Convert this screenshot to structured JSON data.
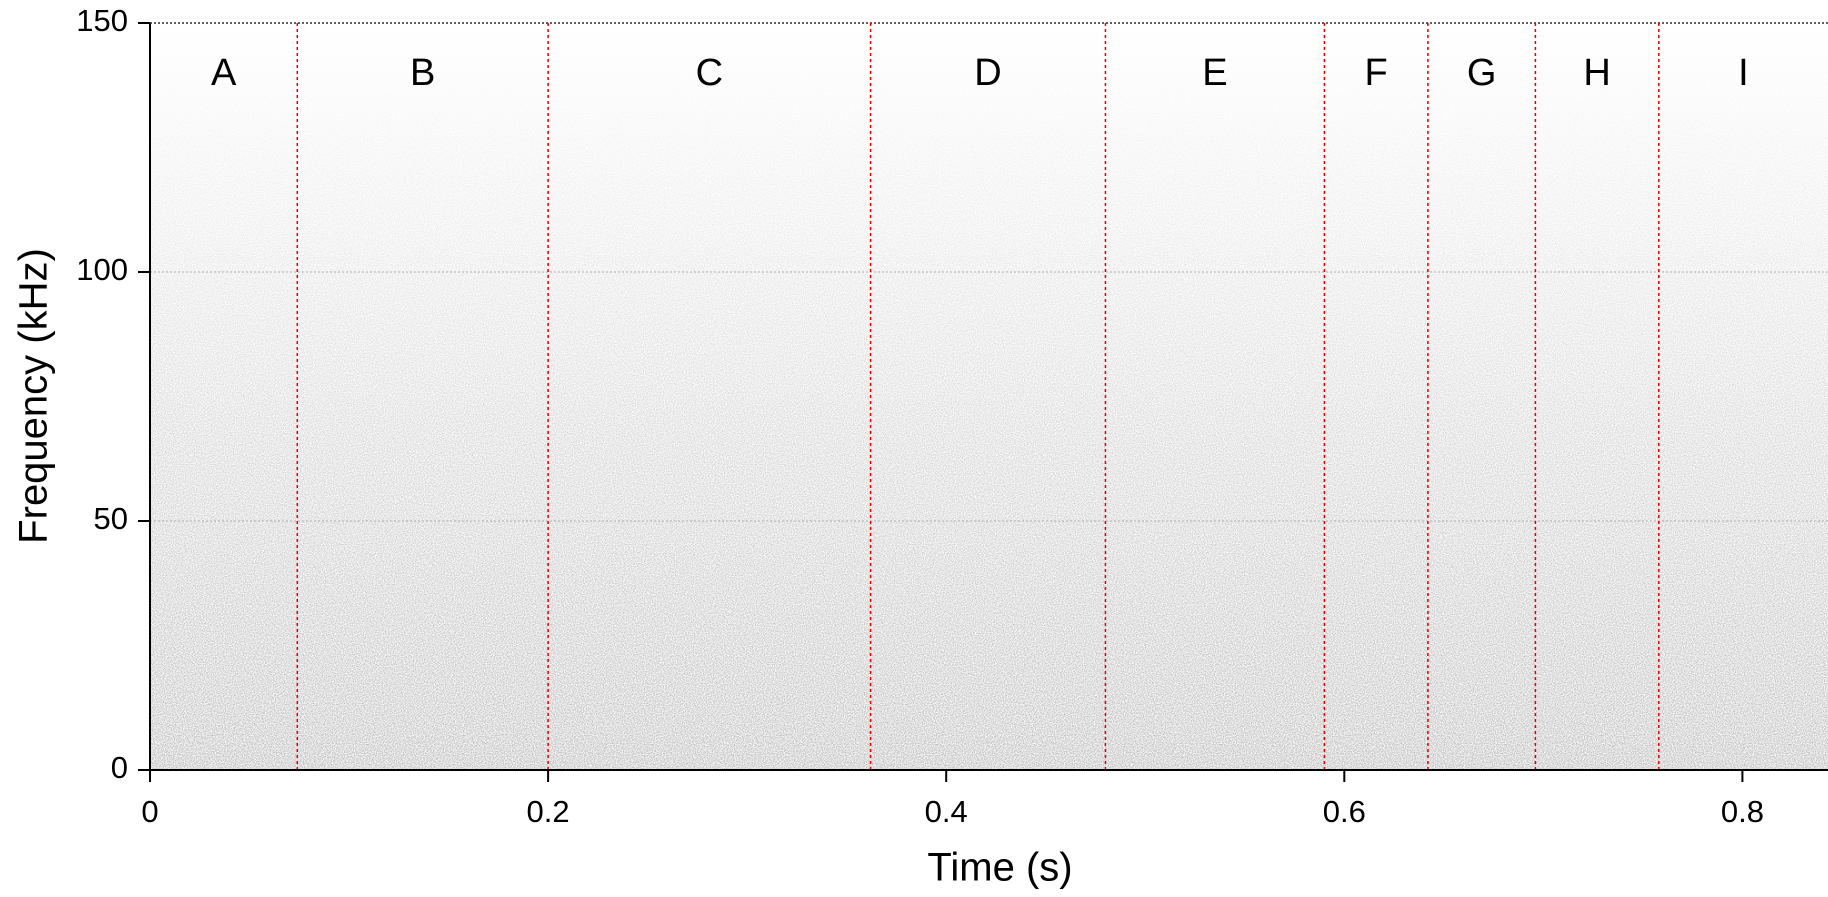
{
  "chart_data": {
    "type": "spectrogram",
    "x_label": "Time (s)",
    "y_label": "Frequency (kHz)",
    "xlim": [
      0,
      0.843
    ],
    "ylim": [
      0,
      150
    ],
    "xticks": [
      0,
      0.2,
      0.4,
      0.6,
      0.8
    ],
    "yticks": [
      0,
      50,
      100,
      150
    ],
    "grid": true,
    "labels": [
      "A",
      "B",
      "C",
      "D",
      "E",
      "F",
      "G",
      "H",
      "I"
    ],
    "boundaries": [
      0.074,
      0.2,
      0.362,
      0.48,
      0.59,
      0.642,
      0.696,
      0.758
    ],
    "boundary_color": "#e00000"
  }
}
